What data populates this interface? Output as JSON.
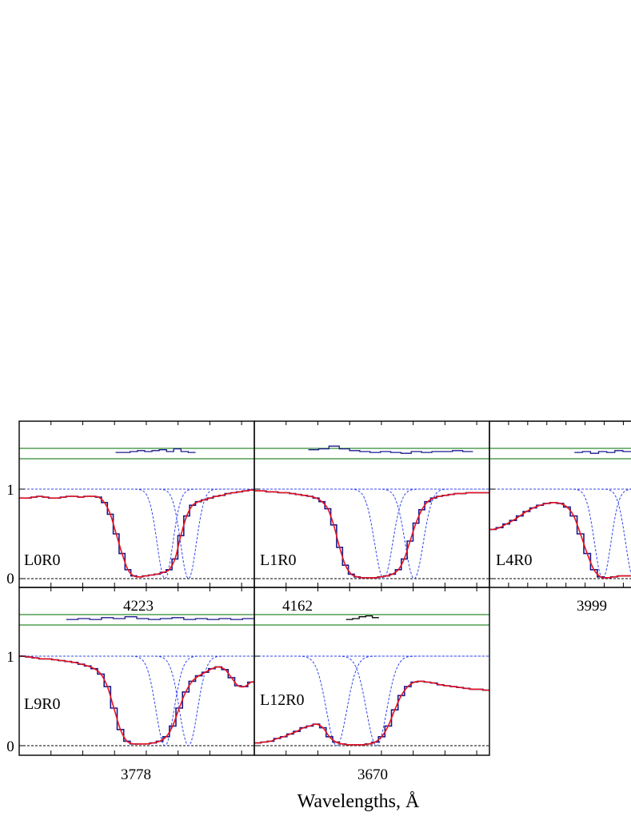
{
  "figure": {
    "xlabel": "Wavelengths, Å"
  },
  "colors": {
    "data": "#1a1a8c",
    "fit": "#e8141e",
    "components": "#3344ee",
    "residual_band": "#2e8b2e",
    "zero_line": "#000000",
    "extra_residual": "#000000"
  },
  "chart_data": [
    {
      "type": "line",
      "label": "L0R0",
      "xtick": "4223",
      "yticks": [
        "0",
        "1"
      ],
      "ylim": [
        -0.07,
        1.75
      ],
      "series": [
        {
          "values": [
            0.9,
            0.9,
            0.91,
            0.92,
            0.91,
            0.9,
            0.9,
            0.91,
            0.92,
            0.92,
            0.91,
            0.92,
            0.92,
            0.91,
            0.85,
            0.72,
            0.5,
            0.28,
            0.1,
            0.03,
            0.02,
            0.03,
            0.04,
            0.05,
            0.07,
            0.1,
            0.22,
            0.48,
            0.7,
            0.82,
            0.86,
            0.88,
            0.9,
            0.92,
            0.93,
            0.95,
            0.96,
            0.97,
            0.98,
            0.99
          ]
        }
      ],
      "residual": {
        "x_start": 0.41,
        "x_end": 0.75,
        "values": [
          1.41,
          1.41,
          1.42,
          1.43,
          1.42,
          1.43,
          1.44,
          1.42,
          1.45,
          1.42,
          1.41
        ]
      }
    },
    {
      "type": "line",
      "label": "L1R0",
      "xtick": "4162",
      "yticks": [],
      "ylim": [
        -0.07,
        1.75
      ],
      "series": [
        {
          "values": [
            0.98,
            0.98,
            0.97,
            0.97,
            0.96,
            0.96,
            0.95,
            0.94,
            0.93,
            0.92,
            0.9,
            0.86,
            0.78,
            0.6,
            0.35,
            0.15,
            0.05,
            0.02,
            0.01,
            0.01,
            0.01,
            0.02,
            0.03,
            0.05,
            0.1,
            0.22,
            0.42,
            0.62,
            0.77,
            0.86,
            0.9,
            0.92,
            0.93,
            0.94,
            0.95,
            0.95,
            0.96,
            0.96,
            0.96,
            0.96
          ]
        }
      ],
      "residual": {
        "x_start": 0.23,
        "x_end": 0.93,
        "values": [
          1.44,
          1.45,
          1.48,
          1.45,
          1.43,
          1.42,
          1.41,
          1.42,
          1.41,
          1.4,
          1.42,
          1.41,
          1.42,
          1.42,
          1.43,
          1.42
        ]
      }
    },
    {
      "type": "line",
      "label": "L4R0",
      "xtick": "3999",
      "yticks": [],
      "ylim": [
        -0.07,
        1.75
      ],
      "series": [
        {
          "values": [
            0.55,
            0.57,
            0.61,
            0.65,
            0.7,
            0.75,
            0.79,
            0.82,
            0.84,
            0.85,
            0.84,
            0.8,
            0.7,
            0.5,
            0.28,
            0.1,
            0.02,
            0.01,
            0.02,
            0.03,
            0.03
          ]
        }
      ],
      "residual": {
        "x_start": 0.6,
        "x_end": 1.0,
        "values": [
          1.41,
          1.42,
          1.4,
          1.42,
          1.41,
          1.43,
          1.42
        ]
      }
    },
    {
      "type": "line",
      "label": "L9R0",
      "xtick": "3778",
      "yticks": [
        "0",
        "1"
      ],
      "ylim": [
        -0.07,
        1.75
      ],
      "series": [
        {
          "values": [
            1.0,
            0.99,
            0.98,
            0.97,
            0.97,
            0.96,
            0.95,
            0.94,
            0.93,
            0.91,
            0.89,
            0.86,
            0.8,
            0.66,
            0.42,
            0.18,
            0.05,
            0.02,
            0.02,
            0.02,
            0.03,
            0.05,
            0.1,
            0.22,
            0.42,
            0.6,
            0.72,
            0.78,
            0.82,
            0.86,
            0.88,
            0.85,
            0.76,
            0.67,
            0.66,
            0.71
          ]
        }
      ],
      "residual": {
        "x_start": 0.2,
        "x_end": 1.0,
        "values": [
          1.41,
          1.42,
          1.41,
          1.43,
          1.42,
          1.44,
          1.42,
          1.41,
          1.42,
          1.43,
          1.41,
          1.42,
          1.41,
          1.42,
          1.41,
          1.42
        ]
      }
    },
    {
      "type": "line",
      "label": "L12R0",
      "xtick": "3670",
      "yticks": [],
      "ylim": [
        -0.07,
        1.75
      ],
      "series": [
        {
          "values": [
            0.03,
            0.04,
            0.05,
            0.08,
            0.1,
            0.13,
            0.16,
            0.2,
            0.22,
            0.24,
            0.2,
            0.1,
            0.04,
            0.02,
            0.01,
            0.01,
            0.01,
            0.02,
            0.04,
            0.1,
            0.22,
            0.4,
            0.56,
            0.66,
            0.71,
            0.72,
            0.71,
            0.7,
            0.68,
            0.67,
            0.66,
            0.65,
            0.64,
            0.63,
            0.63,
            0.62
          ]
        }
      ],
      "residual": {
        "x_start": 0.39,
        "x_end": 0.53,
        "values": [
          1.41,
          1.42,
          1.44,
          1.45,
          1.43
        ]
      }
    }
  ]
}
